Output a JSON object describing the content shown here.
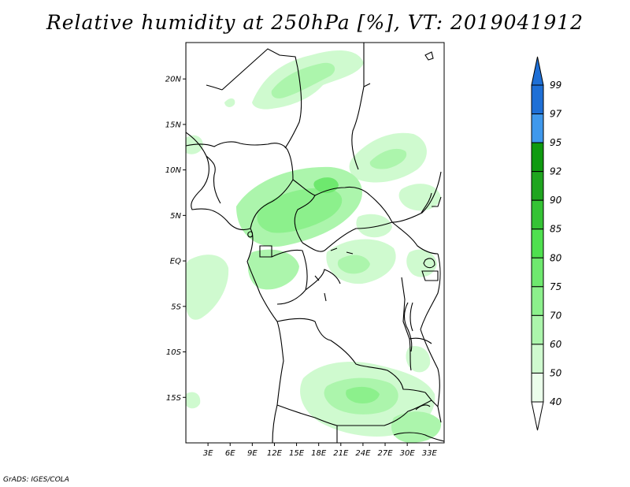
{
  "title": "Relative humidity at 250hPa [%], VT: 2019041912",
  "credit": "GrADS: IGES/COLA",
  "map": {
    "lon_range_deg": [
      0,
      35
    ],
    "lat_range_deg": [
      -20,
      24
    ],
    "lat_ticks": [
      {
        "value": 20,
        "label": "20N"
      },
      {
        "value": 15,
        "label": "15N"
      },
      {
        "value": 10,
        "label": "10N"
      },
      {
        "value": 5,
        "label": "5N"
      },
      {
        "value": 0,
        "label": "EQ"
      },
      {
        "value": -5,
        "label": "5S"
      },
      {
        "value": -10,
        "label": "10S"
      },
      {
        "value": -15,
        "label": "15S"
      }
    ],
    "lon_ticks": [
      {
        "value": 3,
        "label": "3E"
      },
      {
        "value": 6,
        "label": "6E"
      },
      {
        "value": 9,
        "label": "9E"
      },
      {
        "value": 12,
        "label": "12E"
      },
      {
        "value": 15,
        "label": "15E"
      },
      {
        "value": 18,
        "label": "18E"
      },
      {
        "value": 21,
        "label": "21E"
      },
      {
        "value": 24,
        "label": "24E"
      },
      {
        "value": 27,
        "label": "27E"
      },
      {
        "value": 30,
        "label": "30E"
      },
      {
        "value": 33,
        "label": "33E"
      }
    ]
  },
  "colorbar": {
    "levels": [
      {
        "label": "99",
        "color": "#1e6fd6"
      },
      {
        "label": "97",
        "color": "#1e6fd6"
      },
      {
        "label": "95",
        "color": "#3f98ec"
      },
      {
        "label": "92",
        "color": "#0f9a10"
      },
      {
        "label": "90",
        "color": "#1fa51f"
      },
      {
        "label": "85",
        "color": "#35c335"
      },
      {
        "label": "80",
        "color": "#4fe04f"
      },
      {
        "label": "75",
        "color": "#6ee86e"
      },
      {
        "label": "70",
        "color": "#8cf08c"
      },
      {
        "label": "60",
        "color": "#acf5ac"
      },
      {
        "label": "50",
        "color": "#cffacf"
      },
      {
        "label": "40",
        "color": "#ebfeeb"
      }
    ],
    "top_arrow_color": "#1e6fd6",
    "bottom_arrow_color": "#ffffff"
  }
}
